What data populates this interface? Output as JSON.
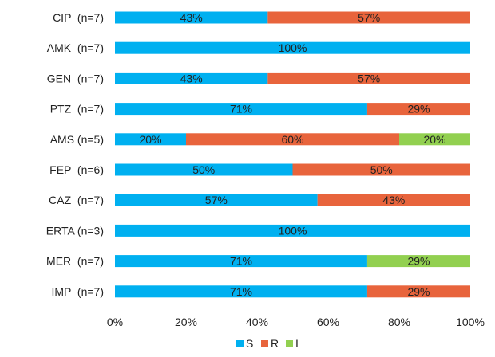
{
  "chart_data": {
    "type": "bar",
    "orientation": "horizontal",
    "stacked": true,
    "percent": true,
    "categories": [
      "CIP  (n=7)",
      "AMK  (n=7)",
      "GEN  (n=7)",
      "PTZ  (n=7)",
      "AMS (n=5)",
      "FEP  (n=6)",
      "CAZ  (n=7)",
      "ERTA (n=3)",
      "MER  (n=7)",
      "IMP  (n=7)"
    ],
    "series": [
      {
        "name": "S",
        "color": "#00B0F0",
        "values": [
          43,
          100,
          43,
          71,
          20,
          50,
          57,
          100,
          71,
          71
        ]
      },
      {
        "name": "R",
        "color": "#E8643C",
        "values": [
          57,
          0,
          57,
          29,
          60,
          50,
          43,
          0,
          0,
          29
        ]
      },
      {
        "name": "I",
        "color": "#92D050",
        "values": [
          0,
          0,
          0,
          0,
          20,
          0,
          0,
          0,
          29,
          0
        ]
      }
    ],
    "xlim": [
      0,
      100
    ],
    "xticks": [
      "0%",
      "20%",
      "40%",
      "60%",
      "80%",
      "100%"
    ],
    "grid": false,
    "legend": "bottom"
  }
}
